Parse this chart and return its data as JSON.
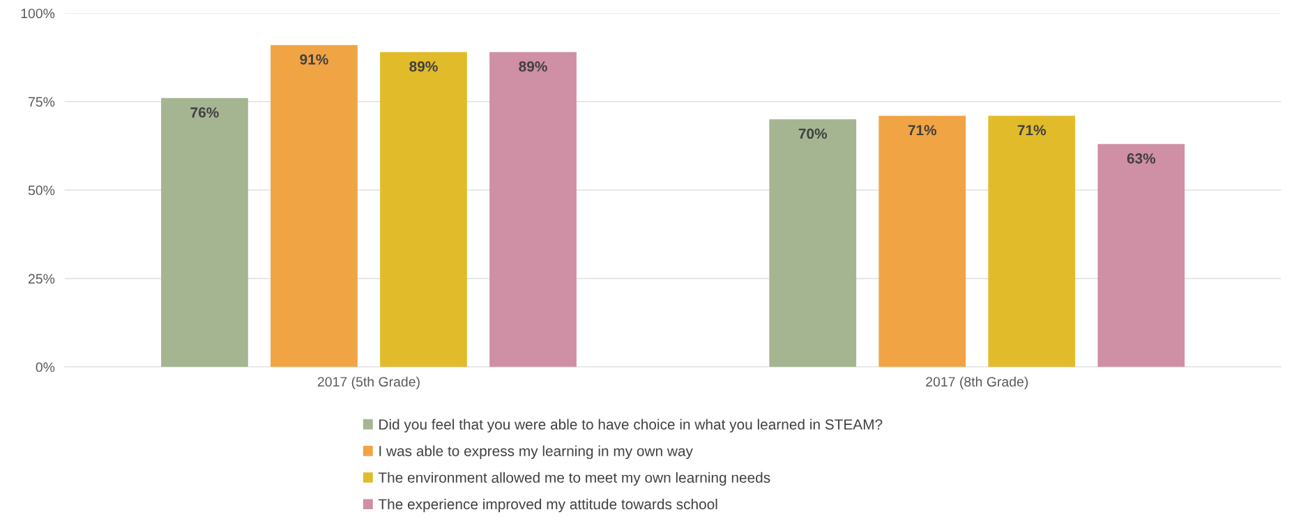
{
  "chart_data": {
    "type": "bar",
    "categories": [
      "2017 (5th Grade)",
      "2017 (8th Grade)"
    ],
    "series": [
      {
        "name": "Did you feel that you were able to have choice in what you learned in STEAM?",
        "color": "#a5b592",
        "values": [
          76,
          70
        ],
        "value_labels": [
          "76%",
          "70%"
        ]
      },
      {
        "name": "I was able to express my learning in my own way",
        "color": "#f0a444",
        "values": [
          91,
          71
        ],
        "value_labels": [
          "91%",
          "71%"
        ]
      },
      {
        "name": "The environment allowed me to meet my own learning needs",
        "color": "#e2bb2a",
        "values": [
          89,
          71
        ],
        "value_labels": [
          "89%",
          "71%"
        ]
      },
      {
        "name": "The experience improved my attitude towards school",
        "color": "#cf8fa5",
        "values": [
          89,
          63
        ],
        "value_labels": [
          "89%",
          "63%"
        ]
      }
    ],
    "ylim": [
      0,
      100
    ],
    "yticks": [
      {
        "value": 0,
        "label": "0%"
      },
      {
        "value": 25,
        "label": "25%"
      },
      {
        "value": 50,
        "label": "50%"
      },
      {
        "value": 75,
        "label": "75%"
      },
      {
        "value": 100,
        "label": "100%"
      }
    ],
    "grid": "y",
    "legend": "bottom"
  }
}
